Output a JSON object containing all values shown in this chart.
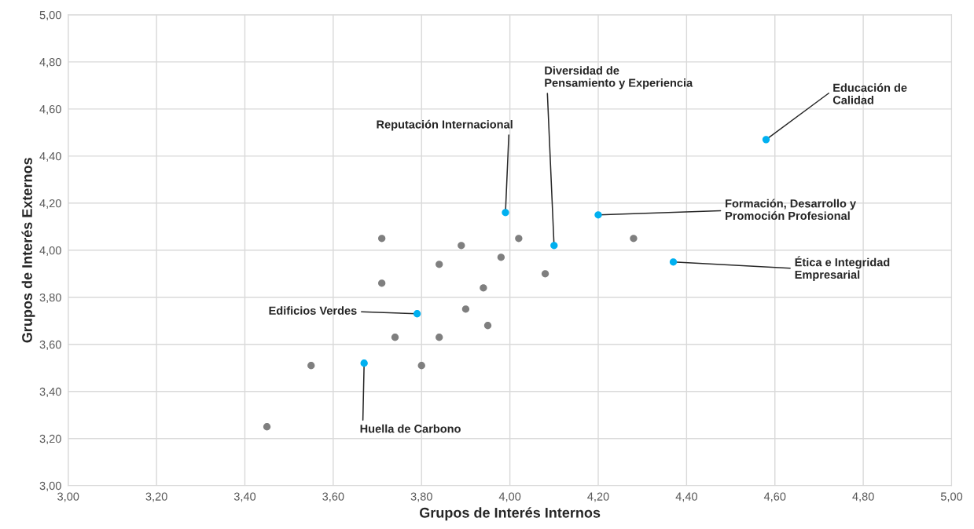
{
  "chart_data": {
    "type": "scatter",
    "xlabel": "Grupos de Interés Internos",
    "ylabel": "Grupos de Interés Externos",
    "xlim": [
      3.0,
      5.0
    ],
    "ylim": [
      3.0,
      5.0
    ],
    "xticks": [
      {
        "value": 3.0,
        "label": "3,00"
      },
      {
        "value": 3.2,
        "label": "3,20"
      },
      {
        "value": 3.4,
        "label": "3,40"
      },
      {
        "value": 3.6,
        "label": "3,60"
      },
      {
        "value": 3.8,
        "label": "3,80"
      },
      {
        "value": 4.0,
        "label": "4,00"
      },
      {
        "value": 4.2,
        "label": "4,20"
      },
      {
        "value": 4.4,
        "label": "4,40"
      },
      {
        "value": 4.6,
        "label": "4,60"
      },
      {
        "value": 4.8,
        "label": "4,80"
      },
      {
        "value": 5.0,
        "label": "5,00"
      }
    ],
    "yticks": [
      {
        "value": 3.0,
        "label": "3,00"
      },
      {
        "value": 3.2,
        "label": "3,20"
      },
      {
        "value": 3.4,
        "label": "3,40"
      },
      {
        "value": 3.6,
        "label": "3,60"
      },
      {
        "value": 3.8,
        "label": "3,80"
      },
      {
        "value": 4.0,
        "label": "4,00"
      },
      {
        "value": 4.2,
        "label": "4,20"
      },
      {
        "value": 4.4,
        "label": "4,40"
      },
      {
        "value": 4.6,
        "label": "4,60"
      },
      {
        "value": 4.8,
        "label": "4,80"
      },
      {
        "value": 5.0,
        "label": "5,00"
      }
    ],
    "grid": true,
    "marker": "circle",
    "series": [
      {
        "color": "#7f7f7f",
        "x": [
          3.71,
          3.89,
          4.02,
          4.28,
          3.84,
          3.98,
          3.71,
          4.08,
          3.94,
          3.9,
          3.95,
          3.74,
          3.84,
          3.55,
          3.8,
          3.45
        ],
        "values": [
          4.05,
          4.02,
          4.05,
          4.05,
          3.94,
          3.97,
          3.86,
          3.9,
          3.84,
          3.75,
          3.68,
          3.63,
          3.63,
          3.51,
          3.51,
          3.25
        ]
      },
      {
        "color": "#00b0f0",
        "x": [
          3.99,
          4.1,
          4.2,
          4.37,
          4.58,
          3.79,
          3.67
        ],
        "values": [
          4.16,
          4.02,
          4.15,
          3.95,
          4.47,
          3.73,
          3.52
        ]
      }
    ],
    "annotations": [
      {
        "text": "Reputación Internacional",
        "x": 3.99,
        "y": 4.16
      },
      {
        "text": "Diversidad de\nPensamiento y Experiencia",
        "x": 4.1,
        "y": 4.02
      },
      {
        "text": "Formación, Desarrollo y\nPromoción Profesional",
        "x": 4.2,
        "y": 4.15
      },
      {
        "text": "Ética e Integridad\nEmpresarial",
        "x": 4.37,
        "y": 3.95
      },
      {
        "text": "Educación de\nCalidad",
        "x": 4.58,
        "y": 4.47
      },
      {
        "text": "Edificios Verdes",
        "x": 3.79,
        "y": 3.73
      },
      {
        "text": "Huella de Carbono",
        "x": 3.67,
        "y": 3.52
      }
    ]
  }
}
